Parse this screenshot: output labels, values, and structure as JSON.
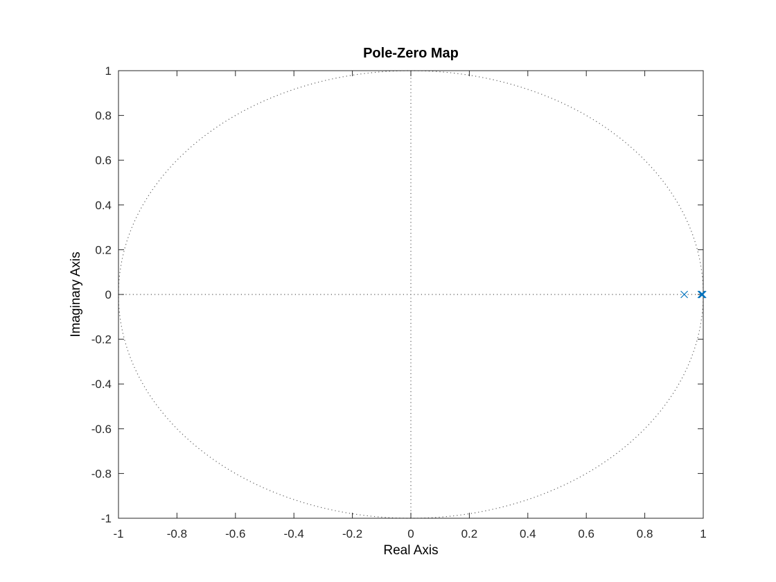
{
  "chart_data": {
    "type": "scatter",
    "title": "Pole-Zero Map",
    "xlabel": "Real Axis",
    "ylabel": "Imaginary Axis",
    "xlim": [
      -1,
      1
    ],
    "ylim": [
      -1,
      1
    ],
    "x_ticks": [
      "-1",
      "-0.8",
      "-0.6",
      "-0.4",
      "-0.2",
      "0",
      "0.2",
      "0.4",
      "0.6",
      "0.8",
      "1"
    ],
    "y_ticks": [
      "1",
      "0.8",
      "0.6",
      "0.4",
      "0.2",
      "0",
      "-0.2",
      "-0.4",
      "-0.6",
      "-0.8",
      "-1"
    ],
    "x_tick_values": [
      -1,
      -0.8,
      -0.6,
      -0.4,
      -0.2,
      0,
      0.2,
      0.4,
      0.6,
      0.8,
      1
    ],
    "y_tick_values": [
      1,
      0.8,
      0.6,
      0.4,
      0.2,
      0,
      -0.2,
      -0.4,
      -0.6,
      -0.8,
      -1
    ],
    "unit_circle": true,
    "grid": false,
    "series": [
      {
        "marker": "x",
        "color": "#0072bd",
        "points": [
          {
            "x": 0.935,
            "y": 0
          },
          {
            "x": 0.993,
            "y": 0
          },
          {
            "x": 0.996,
            "y": 0
          },
          {
            "x": 0.998,
            "y": 0
          }
        ]
      }
    ]
  }
}
